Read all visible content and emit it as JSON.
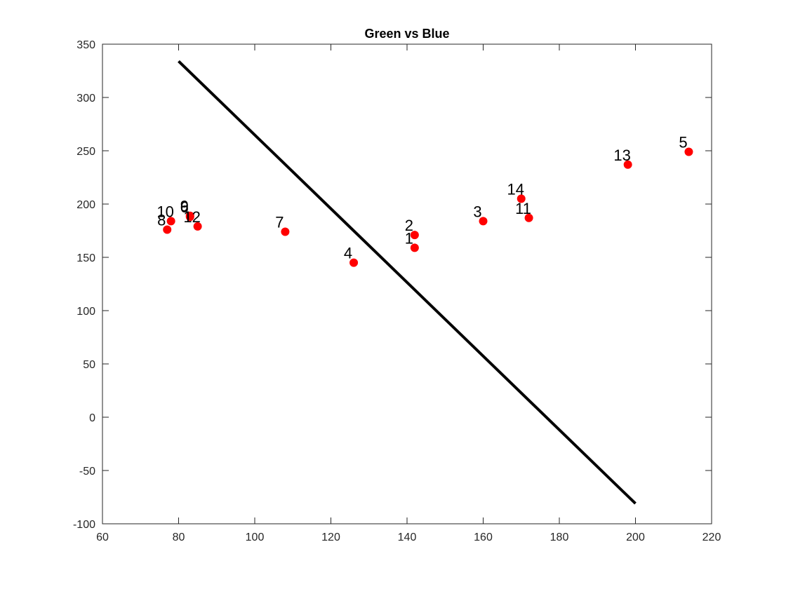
{
  "chart_data": {
    "type": "scatter",
    "title": "Green vs Blue",
    "xlabel": "",
    "ylabel": "",
    "xlim": [
      60,
      220
    ],
    "ylim": [
      -100,
      350
    ],
    "xticks": [
      60,
      80,
      100,
      120,
      140,
      160,
      180,
      200,
      220
    ],
    "yticks": [
      -100,
      -50,
      0,
      50,
      100,
      150,
      200,
      250,
      300,
      350
    ],
    "grid": false,
    "colors": {
      "points": "#ff0000",
      "line": "#000000",
      "axes": "#262626"
    },
    "series": [
      {
        "type": "scatter",
        "points": [
          {
            "label": "1",
            "x": 142,
            "y": 159
          },
          {
            "label": "2",
            "x": 142,
            "y": 171
          },
          {
            "label": "3",
            "x": 160,
            "y": 184
          },
          {
            "label": "4",
            "x": 126,
            "y": 145
          },
          {
            "label": "5",
            "x": 214,
            "y": 249
          },
          {
            "label": "6",
            "x": 83,
            "y": 188
          },
          {
            "label": "7",
            "x": 108,
            "y": 174
          },
          {
            "label": "8",
            "x": 77,
            "y": 176
          },
          {
            "label": "9",
            "x": 83,
            "y": 189
          },
          {
            "label": "10",
            "x": 78,
            "y": 184
          },
          {
            "label": "11",
            "x": 172,
            "y": 187
          },
          {
            "label": "12",
            "x": 85,
            "y": 179
          },
          {
            "label": "13",
            "x": 198,
            "y": 237
          },
          {
            "label": "14",
            "x": 170,
            "y": 205
          }
        ]
      },
      {
        "type": "line",
        "x": [
          80,
          200
        ],
        "y": [
          334,
          -81
        ]
      }
    ]
  }
}
